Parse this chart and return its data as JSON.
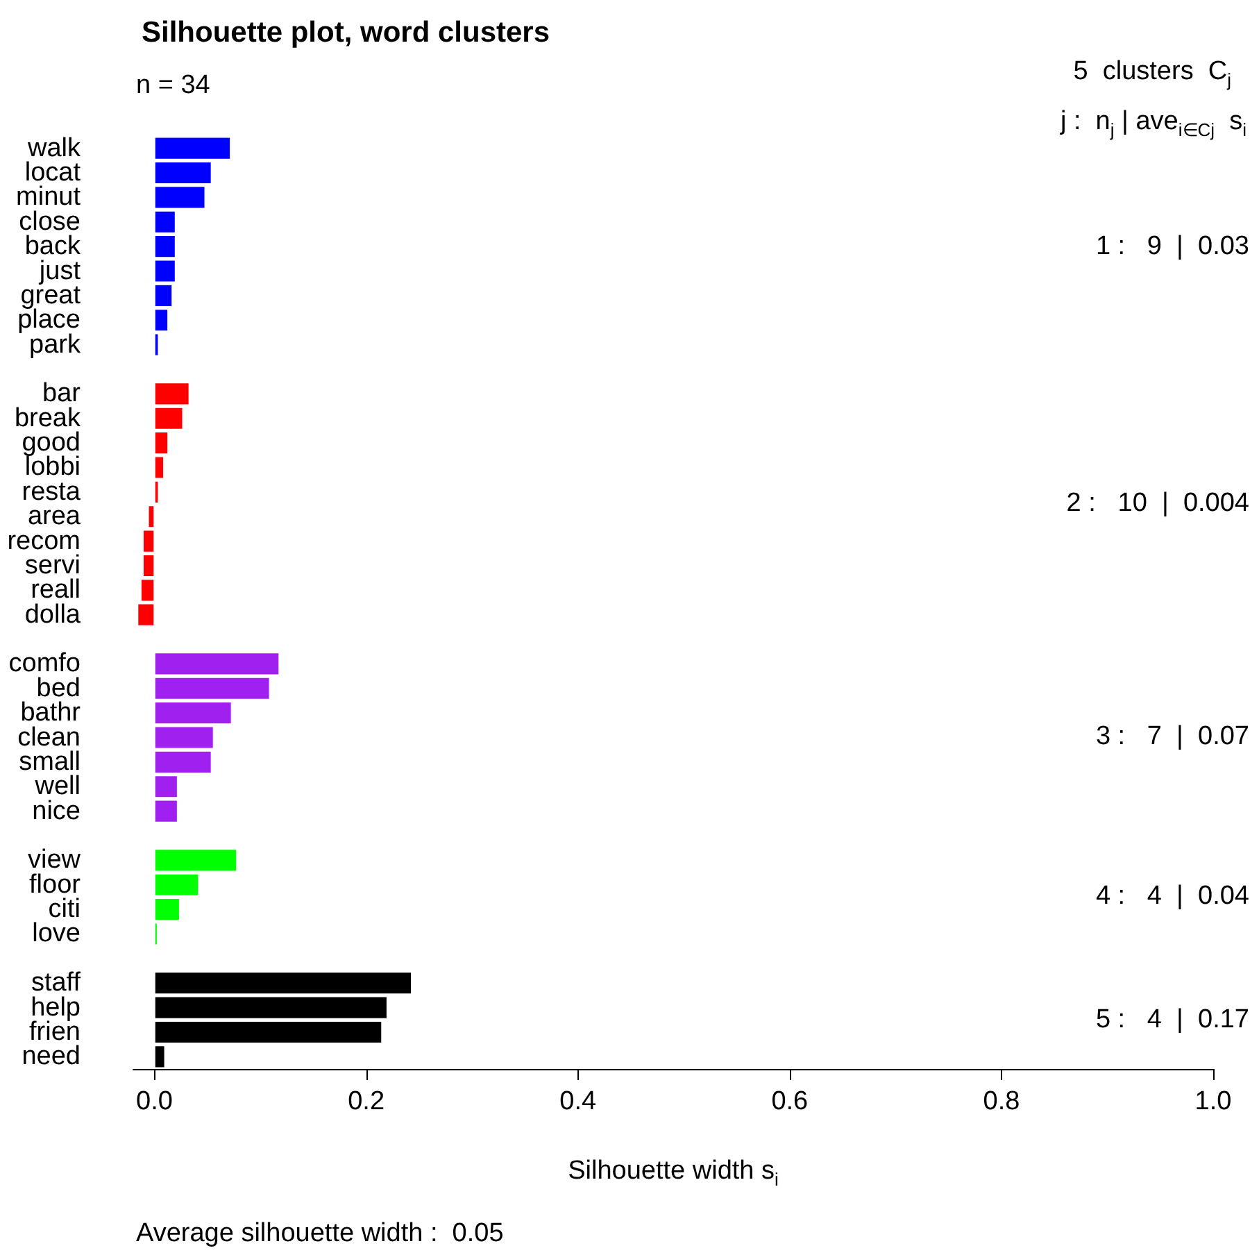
{
  "chart_data": {
    "type": "bar",
    "orientation": "horizontal",
    "stacked": true,
    "title": "Silhouette plot, word clusters",
    "xlabel": "Silhouette width s$_{i}$",
    "categories": [
      "walk",
      "locat",
      "minut",
      "close",
      "back",
      "just",
      "great",
      "place",
      "park",
      null,
      "bar",
      "break",
      "good",
      "lobbi",
      "resta",
      "area",
      "recom",
      "servi",
      "reall",
      "dolla",
      null,
      "comfo",
      "bed",
      "bathr",
      "clean",
      "small",
      "well",
      "nice",
      null,
      "view",
      "floor",
      "citi",
      "love",
      null,
      "staff",
      "help",
      "frien",
      "need"
    ],
    "series": [
      {
        "color": "#0000ff",
        "values": [
          0.072,
          0.054,
          0.048,
          0.02,
          0.02,
          0.02,
          0.017,
          0.013,
          0.004,
          null,
          null,
          null,
          null,
          null,
          null,
          null,
          null,
          null,
          null,
          null,
          null,
          null,
          null,
          null,
          null,
          null,
          null,
          null,
          null,
          null,
          null,
          null,
          null,
          null,
          null,
          null,
          null,
          null
        ]
      },
      {
        "color": "#ff0000",
        "values": [
          null,
          null,
          null,
          null,
          null,
          null,
          null,
          null,
          null,
          null,
          0.033,
          0.027,
          0.013,
          0.009,
          0.004,
          -0.006,
          -0.011,
          -0.011,
          -0.013,
          -0.016,
          null,
          null,
          null,
          null,
          null,
          null,
          null,
          null,
          null,
          null,
          null,
          null,
          null,
          null,
          null,
          null,
          null,
          null
        ]
      },
      {
        "color": "#a020f0",
        "values": [
          null,
          null,
          null,
          null,
          null,
          null,
          null,
          null,
          null,
          null,
          null,
          null,
          null,
          null,
          null,
          null,
          null,
          null,
          null,
          null,
          null,
          0.118,
          0.109,
          0.073,
          0.056,
          0.054,
          0.022,
          0.022,
          null,
          null,
          null,
          null,
          null,
          null,
          null,
          null,
          null,
          null
        ]
      },
      {
        "color": "#00ff00",
        "values": [
          null,
          null,
          null,
          null,
          null,
          null,
          null,
          null,
          null,
          null,
          null,
          null,
          null,
          null,
          null,
          null,
          null,
          null,
          null,
          null,
          null,
          null,
          null,
          null,
          null,
          null,
          null,
          null,
          null,
          0.078,
          0.042,
          0.024,
          0.003,
          null,
          null,
          null,
          null,
          null
        ]
      },
      {
        "color": "#000000",
        "values": [
          null,
          null,
          null,
          null,
          null,
          null,
          null,
          null,
          null,
          null,
          null,
          null,
          null,
          null,
          null,
          null,
          null,
          null,
          null,
          null,
          null,
          null,
          null,
          null,
          null,
          null,
          null,
          null,
          null,
          null,
          null,
          null,
          null,
          null,
          0.243,
          0.22,
          0.215,
          0.01
        ]
      }
    ],
    "xlim": [
      -0.02,
      1
    ],
    "xticks": [
      {
        "value": 0,
        "label": "0.0"
      },
      {
        "value": 0.2,
        "label": "0.2"
      },
      {
        "value": 0.4,
        "label": "0.4"
      },
      {
        "value": 0.6,
        "label": "0.6"
      },
      {
        "value": 0.8,
        "label": "0.8"
      },
      {
        "value": 1,
        "label": "1.0"
      }
    ],
    "grid": false,
    "annotations": [
      "n = 34",
      "5  clusters  C$_{j}$",
      "j :  n$_{j}$ | ave$_{i∈Cj}$  s$_{i}$",
      "1 :   9  |  0.03",
      "2 :   10  |  0.004",
      "3 :   7  |  0.07",
      "4 :   4  |  0.04",
      "5 :   4  |  0.17",
      "Average silhouette width :  0.05"
    ]
  }
}
